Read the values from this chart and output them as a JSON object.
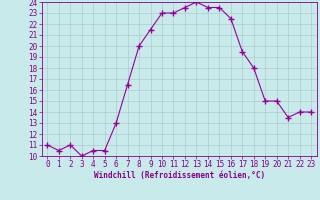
{
  "x": [
    0,
    1,
    2,
    3,
    4,
    5,
    6,
    7,
    8,
    9,
    10,
    11,
    12,
    13,
    14,
    15,
    16,
    17,
    18,
    19,
    20,
    21,
    22,
    23
  ],
  "y": [
    11,
    10.5,
    11,
    10,
    10.5,
    10.5,
    13,
    16.5,
    20,
    21.5,
    23,
    23,
    23.5,
    24,
    23.5,
    23.5,
    22.5,
    19.5,
    18,
    15,
    15,
    13.5,
    14,
    14
  ],
  "line_color": "#990099",
  "marker_color": "#990099",
  "bg_color": "#c8eaea",
  "grid_color": "#aacccc",
  "xlabel": "Windchill (Refroidissement éolien,°C)",
  "xlabel_color": "#880088",
  "tick_color": "#880088",
  "ylim": [
    10,
    24
  ],
  "xlim": [
    -0.5,
    23.5
  ],
  "yticks": [
    10,
    11,
    12,
    13,
    14,
    15,
    16,
    17,
    18,
    19,
    20,
    21,
    22,
    23,
    24
  ],
  "xticks": [
    0,
    1,
    2,
    3,
    4,
    5,
    6,
    7,
    8,
    9,
    10,
    11,
    12,
    13,
    14,
    15,
    16,
    17,
    18,
    19,
    20,
    21,
    22,
    23
  ],
  "tick_fontsize": 5.5,
  "xlabel_fontsize": 5.5
}
